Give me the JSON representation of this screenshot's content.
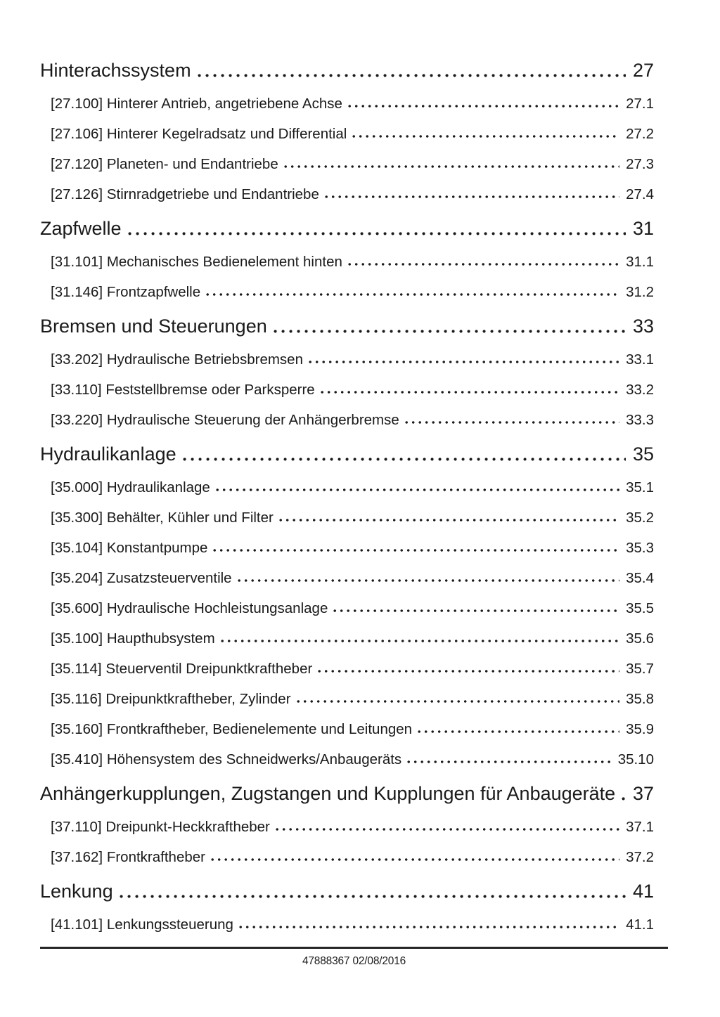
{
  "document": {
    "kind": "table-of-contents",
    "language": "de"
  },
  "toc": {
    "sections": [
      {
        "title": "Hinterachssystem",
        "page": "27",
        "entries": [
          {
            "code": "[27.100]",
            "title": "Hinterer Antrieb, angetriebene Achse",
            "page": "27.1"
          },
          {
            "code": "[27.106]",
            "title": "Hinterer Kegelradsatz und Differential",
            "page": "27.2"
          },
          {
            "code": "[27.120]",
            "title": "Planeten- und Endantriebe",
            "page": "27.3"
          },
          {
            "code": "[27.126]",
            "title": "Stirnradgetriebe und Endantriebe",
            "page": "27.4"
          }
        ]
      },
      {
        "title": "Zapfwelle",
        "page": "31",
        "entries": [
          {
            "code": "[31.101]",
            "title": "Mechanisches Bedienelement hinten",
            "page": "31.1"
          },
          {
            "code": "[31.146]",
            "title": "Frontzapfwelle",
            "page": "31.2"
          }
        ]
      },
      {
        "title": "Bremsen und Steuerungen",
        "page": "33",
        "entries": [
          {
            "code": "[33.202]",
            "title": "Hydraulische Betriebsbremsen",
            "page": "33.1"
          },
          {
            "code": "[33.110]",
            "title": "Feststellbremse oder Parksperre",
            "page": "33.2"
          },
          {
            "code": "[33.220]",
            "title": "Hydraulische Steuerung der Anhängerbremse",
            "page": "33.3"
          }
        ]
      },
      {
        "title": "Hydraulikanlage",
        "page": "35",
        "entries": [
          {
            "code": "[35.000]",
            "title": "Hydraulikanlage",
            "page": "35.1"
          },
          {
            "code": "[35.300]",
            "title": "Behälter, Kühler und Filter",
            "page": "35.2"
          },
          {
            "code": "[35.104]",
            "title": "Konstantpumpe",
            "page": "35.3"
          },
          {
            "code": "[35.204]",
            "title": "Zusatzsteuerventile",
            "page": "35.4"
          },
          {
            "code": "[35.600]",
            "title": "Hydraulische Hochleistungsanlage",
            "page": "35.5"
          },
          {
            "code": "[35.100]",
            "title": "Haupthubsystem",
            "page": "35.6"
          },
          {
            "code": "[35.114]",
            "title": "Steuerventil Dreipunktkraftheber",
            "page": "35.7"
          },
          {
            "code": "[35.116]",
            "title": "Dreipunktkraftheber, Zylinder",
            "page": "35.8"
          },
          {
            "code": "[35.160]",
            "title": "Frontkraftheber, Bedienelemente und Leitungen",
            "page": "35.9"
          },
          {
            "code": "[35.410]",
            "title": "Höhensystem des Schneidwerks/Anbaugeräts",
            "page": "35.10"
          }
        ]
      },
      {
        "title": "Anhängerkupplungen, Zugstangen und Kupplungen für Anbaugeräte",
        "page": "37",
        "entries": [
          {
            "code": "[37.110]",
            "title": "Dreipunkt-Heckkraftheber",
            "page": "37.1"
          },
          {
            "code": "[37.162]",
            "title": "Frontkraftheber",
            "page": "37.2"
          }
        ]
      },
      {
        "title": "Lenkung",
        "page": "41",
        "entries": [
          {
            "code": "[41.101]",
            "title": "Lenkungssteuerung",
            "page": "41.1"
          }
        ]
      }
    ]
  },
  "footer": {
    "doc_number": "47888367",
    "date": "02/08/2016"
  },
  "colors": {
    "text": "#1a1a1a",
    "background": "#ffffff",
    "rule": "#262626",
    "dot": "#1b1b1b"
  }
}
